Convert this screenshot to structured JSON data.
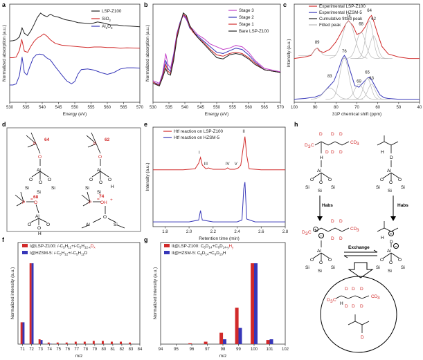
{
  "panels": {
    "a": "a",
    "b": "b",
    "c": "c",
    "d": "d",
    "e": "e",
    "f": "f",
    "g": "g",
    "h": "h"
  },
  "colors": {
    "black": "#222222",
    "red": "#d12a2a",
    "blue": "#3636b8",
    "magenta": "#c23fc8",
    "gray": "#b7b7b7"
  },
  "chart_data": [
    {
      "id": "a",
      "type": "line",
      "xlabel": "Energy (eV)",
      "ylabel": "Normalized absorption (a.u.)",
      "xlim": [
        530,
        570
      ],
      "xticks": [
        "530",
        "535",
        "540",
        "545",
        "550",
        "555",
        "560",
        "565",
        "570"
      ],
      "legend": "top-right",
      "series": [
        {
          "name": "LSP-Z100",
          "color": "#222222",
          "x": [
            530,
            531,
            532,
            533,
            533.8,
            534.5,
            535.5,
            536.5,
            537.5,
            538.5,
            539.5,
            540.5,
            541.5,
            542.5,
            543.5,
            545,
            547,
            549,
            551,
            553,
            555,
            557,
            559,
            561,
            563,
            565,
            567,
            570
          ],
          "y": [
            2.06,
            2.07,
            2.1,
            2.2,
            2.5,
            2.32,
            2.24,
            2.4,
            2.62,
            2.85,
            3.0,
            2.92,
            2.88,
            2.96,
            2.9,
            2.86,
            2.78,
            2.74,
            2.68,
            2.66,
            2.64,
            2.7,
            2.66,
            2.6,
            2.6,
            2.57,
            2.56,
            2.54
          ]
        },
        {
          "name": "SiO2",
          "color": "#d12a2a",
          "x": [
            530,
            531,
            532,
            533,
            533.7,
            534.5,
            535.5,
            536.5,
            537.5,
            538.5,
            539.5,
            540.5,
            541.5,
            542.5,
            544,
            546,
            548,
            550,
            552,
            554,
            556,
            558,
            560,
            562,
            564,
            566,
            570
          ],
          "y": [
            1.5,
            1.5,
            1.52,
            1.75,
            2.12,
            1.72,
            1.68,
            1.88,
            2.05,
            2.16,
            2.22,
            2.3,
            2.22,
            2.1,
            1.98,
            1.92,
            1.9,
            1.88,
            1.86,
            1.84,
            1.86,
            1.86,
            1.84,
            1.84,
            1.82,
            1.83,
            1.82
          ]
        },
        {
          "name": "Al2O3",
          "color": "#3636b8",
          "x": [
            530,
            531,
            532,
            533,
            533.8,
            534.5,
            535.3,
            536.2,
            537.2,
            538.2,
            539.2,
            540.3,
            541.3,
            542.5,
            544,
            546,
            547.5,
            549,
            550,
            551,
            552,
            554,
            556,
            558,
            560,
            562,
            564,
            566,
            568,
            570
          ],
          "y": [
            0.58,
            0.58,
            0.62,
            0.9,
            1.52,
            1.0,
            0.92,
            1.2,
            1.48,
            1.6,
            1.62,
            1.6,
            1.5,
            1.42,
            1.2,
            0.92,
            0.72,
            0.62,
            0.7,
            0.95,
            1.1,
            1.12,
            1.08,
            1.0,
            0.94,
            1.0,
            1.12,
            1.16,
            1.16,
            1.15
          ]
        }
      ]
    },
    {
      "id": "b",
      "type": "line",
      "xlabel": "Energy (eV)",
      "ylabel": "Normalized absorption (a.u.)",
      "xlim": [
        530,
        570
      ],
      "xticks": [
        "530",
        "535",
        "540",
        "545",
        "550",
        "555",
        "560",
        "565",
        "570"
      ],
      "legend": "top-right",
      "series": [
        {
          "name": "Stage 3",
          "color": "#c23fc8",
          "x": [
            530,
            531,
            532,
            533,
            534,
            534.7,
            535.5,
            536.5,
            537.5,
            538.5,
            539.5,
            540.5,
            541.5,
            542.5,
            544,
            546,
            548,
            550,
            552,
            554,
            556,
            558,
            560,
            562,
            565,
            570
          ],
          "y": [
            0.32,
            0.3,
            0.28,
            0.42,
            0.72,
            0.56,
            0.5,
            0.72,
            1.02,
            1.18,
            1.28,
            1.22,
            1.12,
            1.08,
            1.0,
            0.94,
            0.86,
            0.82,
            0.78,
            0.8,
            0.84,
            0.82,
            0.74,
            0.62,
            0.5,
            0.45
          ]
        },
        {
          "name": "Stage 2",
          "color": "#3636b8",
          "x": [
            530,
            531,
            532,
            533,
            534,
            534.7,
            535.5,
            536.5,
            537.5,
            538.5,
            539.5,
            540.5,
            541.5,
            542.5,
            544,
            546,
            548,
            550,
            552,
            554,
            556,
            558,
            560,
            562,
            565,
            570
          ],
          "y": [
            0.3,
            0.28,
            0.26,
            0.4,
            0.62,
            0.5,
            0.45,
            0.7,
            1.0,
            1.18,
            1.3,
            1.24,
            1.1,
            1.05,
            0.98,
            0.9,
            0.82,
            0.74,
            0.72,
            0.76,
            0.8,
            0.78,
            0.7,
            0.6,
            0.48,
            0.44
          ]
        },
        {
          "name": "Stage 1",
          "color": "#d12a2a",
          "x": [
            530,
            531,
            532,
            533,
            534,
            534.7,
            535.5,
            536.5,
            537.5,
            538.5,
            539.5,
            540.5,
            541.5,
            542.5,
            544,
            546,
            548,
            550,
            552,
            554,
            556,
            558,
            560,
            562,
            565,
            570
          ],
          "y": [
            0.3,
            0.27,
            0.25,
            0.38,
            0.56,
            0.46,
            0.42,
            0.66,
            0.98,
            1.16,
            1.3,
            1.26,
            1.12,
            1.04,
            0.96,
            0.88,
            0.78,
            0.7,
            0.68,
            0.72,
            0.74,
            0.72,
            0.66,
            0.58,
            0.48,
            0.44
          ]
        },
        {
          "name": "Bare LSP-Z100",
          "color": "#222222",
          "x": [
            530,
            531,
            532,
            533,
            534,
            534.7,
            535.5,
            536.5,
            537.5,
            538.5,
            539.5,
            540.5,
            541.5,
            542.5,
            544,
            546,
            548,
            550,
            552,
            554,
            556,
            558,
            560,
            562,
            565,
            570
          ],
          "y": [
            0.28,
            0.26,
            0.24,
            0.36,
            0.5,
            0.42,
            0.4,
            0.62,
            0.94,
            1.14,
            1.32,
            1.28,
            1.14,
            1.06,
            0.96,
            0.86,
            0.76,
            0.66,
            0.64,
            0.7,
            0.72,
            0.7,
            0.64,
            0.56,
            0.48,
            0.44
          ]
        }
      ]
    },
    {
      "id": "c",
      "type": "line",
      "xlabel": "31P chemical shift (ppm)",
      "ylabel": "Intensity (a.u.)",
      "xlim": [
        100,
        40
      ],
      "xticks": [
        "100",
        "90",
        "80",
        "70",
        "60",
        "50",
        "40"
      ],
      "legend": "top-left",
      "legend_entries": [
        {
          "name": "Experimental LSP-Z100",
          "color": "#d12a2a"
        },
        {
          "name": "Experimental HZSM-5",
          "color": "#3636b8"
        },
        {
          "name": "Cumulative fitted peak",
          "color": "#222222"
        },
        {
          "name": "Fitted peak",
          "color": "#b7b7b7"
        }
      ],
      "peak_labels_top": [
        "89",
        "74",
        "68",
        "64",
        "62"
      ],
      "peak_labels_bottom": [
        "83",
        "76",
        "69",
        "65",
        "63"
      ],
      "series": [
        {
          "name": "Experimental LSP-Z100",
          "color": "#d12a2a",
          "x": [
            100,
            95,
            92,
            90,
            89,
            88,
            86,
            83,
            80,
            77,
            75,
            74,
            72,
            70,
            68,
            66,
            64,
            63,
            62,
            60,
            58,
            55,
            50,
            45,
            40
          ],
          "y": [
            0.58,
            0.6,
            0.62,
            0.7,
            0.72,
            0.68,
            0.66,
            0.7,
            0.8,
            0.95,
            1.05,
            1.08,
            1.02,
            0.9,
            0.92,
            1.0,
            1.12,
            1.15,
            1.08,
            0.9,
            0.74,
            0.64,
            0.6,
            0.58,
            0.58
          ]
        },
        {
          "name": "Experimental HZSM-5",
          "color": "#3636b8",
          "x": [
            100,
            95,
            90,
            87,
            85,
            83,
            81,
            79,
            77,
            76,
            75,
            73,
            71,
            69,
            67,
            65,
            64,
            63,
            61,
            59,
            57,
            55,
            50,
            45,
            40
          ],
          "y": [
            0.04,
            0.05,
            0.07,
            0.1,
            0.16,
            0.22,
            0.28,
            0.42,
            0.58,
            0.62,
            0.58,
            0.4,
            0.22,
            0.2,
            0.26,
            0.32,
            0.33,
            0.3,
            0.2,
            0.1,
            0.06,
            0.05,
            0.04,
            0.04,
            0.04
          ]
        }
      ]
    },
    {
      "id": "e",
      "type": "line",
      "xlabel": "Retention time (min)",
      "ylabel": "Intensity (a.u.)",
      "xlim": [
        1.7,
        2.8
      ],
      "xticks": [
        "1.8",
        "2.0",
        "2.2",
        "2.4",
        "2.6",
        "2.8"
      ],
      "legend": "top-left",
      "peak_labels": [
        "I",
        "II",
        "III",
        "IV",
        "V"
      ],
      "series": [
        {
          "name": "Htf reaction on LSP-Z100",
          "color": "#d12a2a",
          "x": [
            1.7,
            1.95,
            2.05,
            2.08,
            2.095,
            2.11,
            2.14,
            2.16,
            2.2,
            2.3,
            2.32,
            2.34,
            2.38,
            2.41,
            2.43,
            2.45,
            2.465,
            2.48,
            2.5,
            2.6,
            2.8
          ],
          "y": [
            0.55,
            0.55,
            0.56,
            0.62,
            0.68,
            0.6,
            0.56,
            0.57,
            0.555,
            0.555,
            0.57,
            0.555,
            0.555,
            0.57,
            0.6,
            0.78,
            0.9,
            0.7,
            0.56,
            0.55,
            0.55
          ]
        },
        {
          "name": "Htf reaction on HZSM-5",
          "color": "#3636b8",
          "x": [
            1.7,
            2.0,
            2.08,
            2.095,
            2.11,
            2.2,
            2.4,
            2.44,
            2.455,
            2.465,
            2.48,
            2.55,
            2.8
          ],
          "y": [
            0.0,
            0.0,
            0.02,
            0.12,
            0.02,
            0.0,
            0.0,
            0.02,
            0.35,
            0.42,
            0.03,
            0.0,
            0.0
          ]
        }
      ]
    },
    {
      "id": "f",
      "type": "bar",
      "xlabel": "m/z",
      "ylabel": "Normalized intensity (a.u.)",
      "xticks": [
        "71",
        "72",
        "73",
        "74",
        "75",
        "76",
        "77",
        "78",
        "79",
        "80",
        "81",
        "82",
        "83",
        "84"
      ],
      "legend": "top-left",
      "categories": [
        71,
        72,
        73,
        74,
        75,
        76,
        77,
        78,
        79,
        80,
        81,
        82,
        83
      ],
      "series": [
        {
          "name": "I@LSP-Z100: i-C5H12+i-C5H12-xDx",
          "color": "#d12a2a",
          "values": [
            0.27,
            1.0,
            0.06,
            0.02,
            0.02,
            0.02,
            0.03,
            0.03,
            0.04,
            0.04,
            0.03,
            0.03,
            0.02
          ]
        },
        {
          "name": "I@HZSM-5: i-C5H12+i-C5H11D",
          "color": "#3636b8",
          "values": [
            0.27,
            1.0,
            0.05,
            0.005,
            0.0,
            0.0,
            0.0,
            0.0,
            0.0,
            0.0,
            0.0,
            0.0,
            0.0
          ]
        }
      ]
    },
    {
      "id": "g",
      "type": "bar",
      "xlabel": "m/z",
      "ylabel": "Normalized intensity (a.u.)",
      "xticks": [
        "94",
        "95",
        "96",
        "97",
        "98",
        "99",
        "100",
        "101",
        "102"
      ],
      "legend": "top-left",
      "categories": [
        94,
        95,
        96,
        97,
        98,
        99,
        100,
        101
      ],
      "series": [
        {
          "name": "II@LSP-Z100: C6D14+C6D14-yHy",
          "color": "#d12a2a",
          "values": [
            0.0,
            0.0,
            0.01,
            0.03,
            0.14,
            0.45,
            1.0,
            0.05
          ]
        },
        {
          "name": "II@HZSM-5: C6D14+C6D13H",
          "color": "#3636b8",
          "values": [
            0.0,
            0.0,
            0.0,
            0.0,
            0.06,
            0.2,
            1.0,
            0.06
          ]
        }
      ]
    }
  ],
  "text": {
    "a_leg1": "LSP-Z100",
    "a_leg2": "SiO",
    "a_leg2s": "2",
    "a_leg3": "Al",
    "a_leg3s1": "2",
    "a_leg3b": "O",
    "a_leg3s2": "3",
    "b_leg1": "Stage 3",
    "b_leg2": "Stage 2",
    "b_leg3": "Stage 1",
    "b_leg4": "Bare LSP-Z100",
    "c_leg1": "Experimental LSP-Z100",
    "c_leg2": "Experimental HZSM-5",
    "c_leg3": "Cumulative fitted peak",
    "c_leg4": "Fitted peak",
    "c_xlab_sup": "31",
    "c_xlab": "P chemical shift (ppm)",
    "e_leg1": "Htf reaction on LSP-Z100",
    "e_leg2": "Htf reaction on HZSM-5",
    "f_leg1a": "I@LSP-Z100: ",
    "f_leg1b": "i",
    "f_leg1c": "-C",
    "f_leg1d": "5",
    "f_leg1e": "H",
    "f_leg1f": "12",
    "f_leg1g": "+",
    "f_leg1h": "i",
    "f_leg1i": "-C",
    "f_leg1j": "5",
    "f_leg1k": "H",
    "f_leg1l": "12-x",
    "f_leg1m": "D",
    "f_leg1n": "x",
    "f_leg2a": "I@HZSM-5: ",
    "f_leg2b": "i",
    "f_leg2c": "-C",
    "f_leg2d": "5",
    "f_leg2e": "H",
    "f_leg2f": "12",
    "f_leg2g": "+",
    "f_leg2h": "i",
    "f_leg2i": "-C",
    "f_leg2j": "5",
    "f_leg2k": "H",
    "f_leg2l": "11",
    "f_leg2m": "D",
    "g_leg1a": "II@LSP-Z100: C",
    "g_leg1b": "6",
    "g_leg1c": "D",
    "g_leg1d": "14",
    "g_leg1e": "+C",
    "g_leg1f": "6",
    "g_leg1g": "D",
    "g_leg1h": "14-y",
    "g_leg1i": "H",
    "g_leg1j": "y",
    "g_leg2a": "II@HZSM-5: C",
    "g_leg2b": "6",
    "g_leg2c": "D",
    "g_leg2d": "14",
    "g_leg2e": "+C",
    "g_leg2f": "6",
    "g_leg2g": "D",
    "g_leg2h": "13",
    "g_leg2i": "H",
    "d_num1": "64",
    "d_num2": "62",
    "d_num3": "68",
    "d_num4": "74",
    "h_habs1": "Habs",
    "h_habs2": "Habs",
    "h_exchange": "Exchange"
  }
}
